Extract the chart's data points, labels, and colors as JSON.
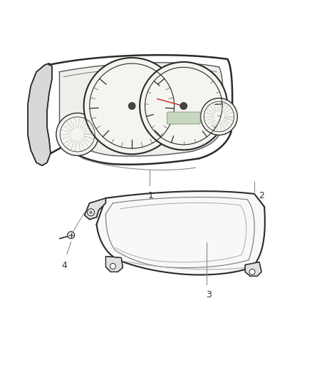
{
  "bg_color": "#ffffff",
  "line_color": "#2a2a2a",
  "gray_color": "#888888",
  "light_gray": "#cccccc",
  "gauge_face": "#f5f5f0"
}
